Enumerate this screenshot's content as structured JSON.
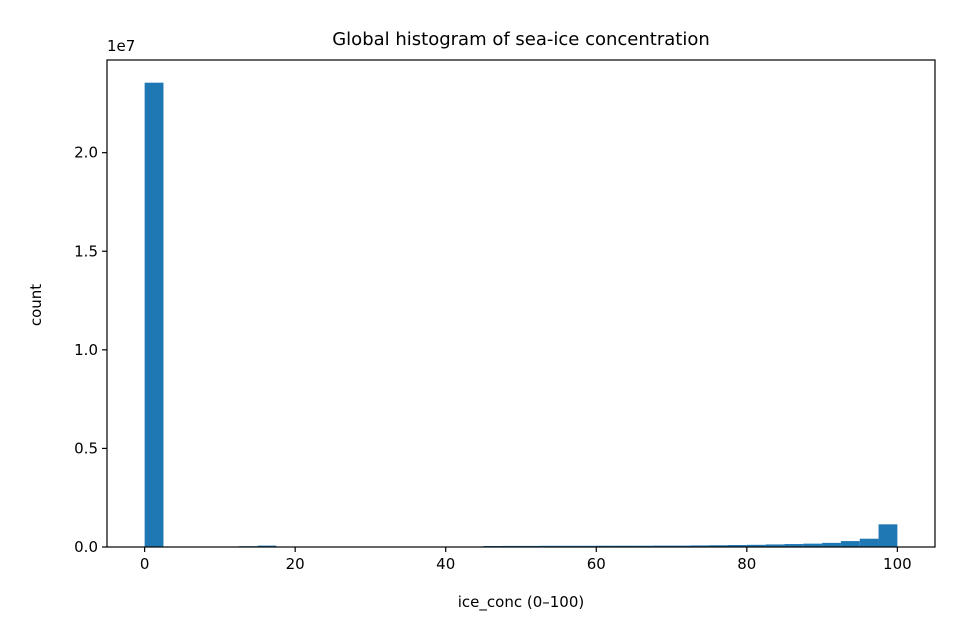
{
  "chart_data": {
    "type": "bar",
    "title": "Global histogram of sea-ice concentration",
    "xlabel": "ice_conc (0–100)",
    "ylabel": "count",
    "y_offset_label": "1e7",
    "xlim": [
      -5,
      105
    ],
    "ylim": [
      0,
      24700000
    ],
    "x_ticks": [
      0,
      20,
      40,
      60,
      80,
      100
    ],
    "x_tick_labels": [
      "0",
      "20",
      "40",
      "60",
      "80",
      "100"
    ],
    "y_ticks": [
      0,
      5000000,
      10000000,
      15000000,
      20000000
    ],
    "y_tick_labels": [
      "0.0",
      "0.5",
      "1.0",
      "1.5",
      "2.0"
    ],
    "bin_width": 2.5,
    "bin_starts": [
      0,
      2.5,
      5,
      7.5,
      10,
      12.5,
      15,
      17.5,
      20,
      22.5,
      25,
      27.5,
      30,
      32.5,
      35,
      37.5,
      40,
      42.5,
      45,
      47.5,
      50,
      52.5,
      55,
      57.5,
      60,
      62.5,
      65,
      67.5,
      70,
      72.5,
      75,
      77.5,
      80,
      82.5,
      85,
      87.5,
      90,
      92.5,
      95,
      97.5
    ],
    "values": [
      23550000,
      0,
      0,
      0,
      0,
      40000,
      70000,
      20000,
      0,
      0,
      0,
      0,
      0,
      0,
      0,
      0,
      0,
      0,
      50000,
      55000,
      55000,
      60000,
      60000,
      60000,
      65000,
      65000,
      65000,
      70000,
      70000,
      80000,
      90000,
      100000,
      110000,
      130000,
      150000,
      170000,
      210000,
      300000,
      420000,
      1150000
    ],
    "bar_color": "#1f77b4",
    "grid": false,
    "legend": "none"
  }
}
